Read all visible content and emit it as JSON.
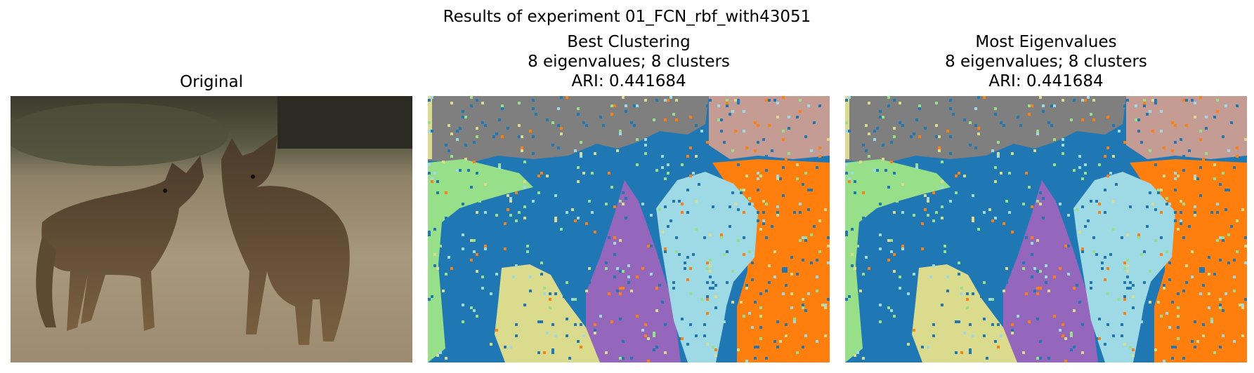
{
  "figure": {
    "suptitle": "Results of experiment 01_FCN_rbf_with43051"
  },
  "panels": [
    {
      "id": "original",
      "title_lines": [
        "Original"
      ],
      "image": "photo of two coyotes on gravel ground"
    },
    {
      "id": "best",
      "title_lines": [
        "Best Clustering",
        "8 eigenvalues; 8 clusters",
        "ARI: 0.441684"
      ],
      "image": "segmentation map"
    },
    {
      "id": "most",
      "title_lines": [
        "Most Eigenvalues",
        "8 eigenvalues; 8 clusters",
        "ARI: 0.441684"
      ],
      "image": "segmentation map"
    }
  ],
  "segment_colors": {
    "blue": "#1f77b4",
    "gray": "#7f7f7f",
    "pink": "#c49c94",
    "orange": "#ff7f0e",
    "light_green": "#98df8a",
    "purple": "#9467bd",
    "light_blue": "#9edae5",
    "olive": "#dbdb8d"
  }
}
